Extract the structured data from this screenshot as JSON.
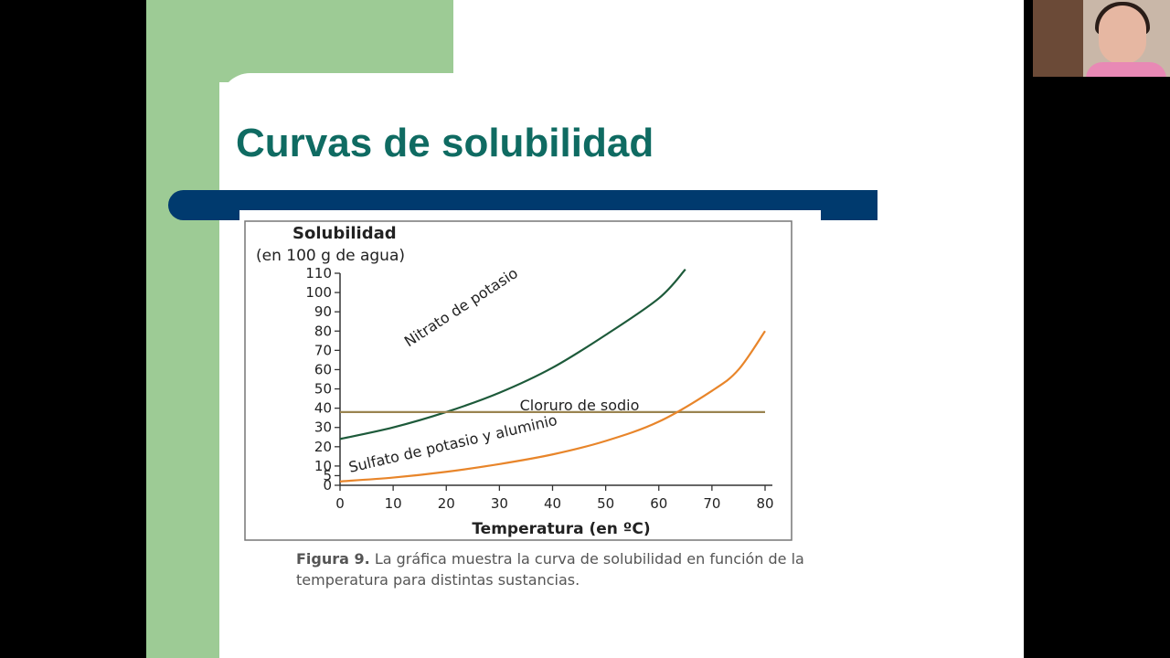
{
  "slide": {
    "title": "Curvas de solubilidad",
    "caption_bold": "Figura 9.",
    "caption_text": " La gráfica muestra la curva de solubilidad en función de la temperatura para distintas sustancias."
  },
  "webcam": {
    "icon": "participant-video"
  },
  "colors": {
    "title": "#0f6b62",
    "bar": "#003a6e",
    "green": "#9dcb95",
    "nitrato": "#1d5a3a",
    "cloruro": "#9a8450",
    "sulfato": "#e8852a"
  },
  "chart_data": {
    "type": "line",
    "ylabel": "Solubilidad",
    "ylabel_sub": "(en 100 g de agua)",
    "xlabel": "Temperatura (en ºC)",
    "xlim": [
      0,
      80
    ],
    "ylim": [
      0,
      110
    ],
    "xticks": [
      0,
      10,
      20,
      30,
      40,
      50,
      60,
      70,
      80
    ],
    "yticks": [
      0,
      5,
      10,
      20,
      30,
      40,
      50,
      60,
      70,
      80,
      90,
      100,
      110
    ],
    "grid": false,
    "legend": "none",
    "series": [
      {
        "name": "Nitrato de potasio",
        "color": "#1d5a3a",
        "x": [
          0,
          10,
          20,
          30,
          40,
          50,
          60,
          65
        ],
        "y": [
          24,
          30,
          38,
          48,
          61,
          78,
          97,
          112
        ]
      },
      {
        "name": "Cloruro de sodio",
        "color": "#9a8450",
        "x": [
          0,
          80
        ],
        "y": [
          38,
          38
        ]
      },
      {
        "name": "Sulfato de potasio y aluminio",
        "color": "#e8852a",
        "x": [
          0,
          10,
          20,
          30,
          40,
          50,
          60,
          70,
          75,
          80
        ],
        "y": [
          2,
          4,
          7,
          11,
          16,
          23,
          33,
          49,
          60,
          80
        ]
      }
    ]
  }
}
